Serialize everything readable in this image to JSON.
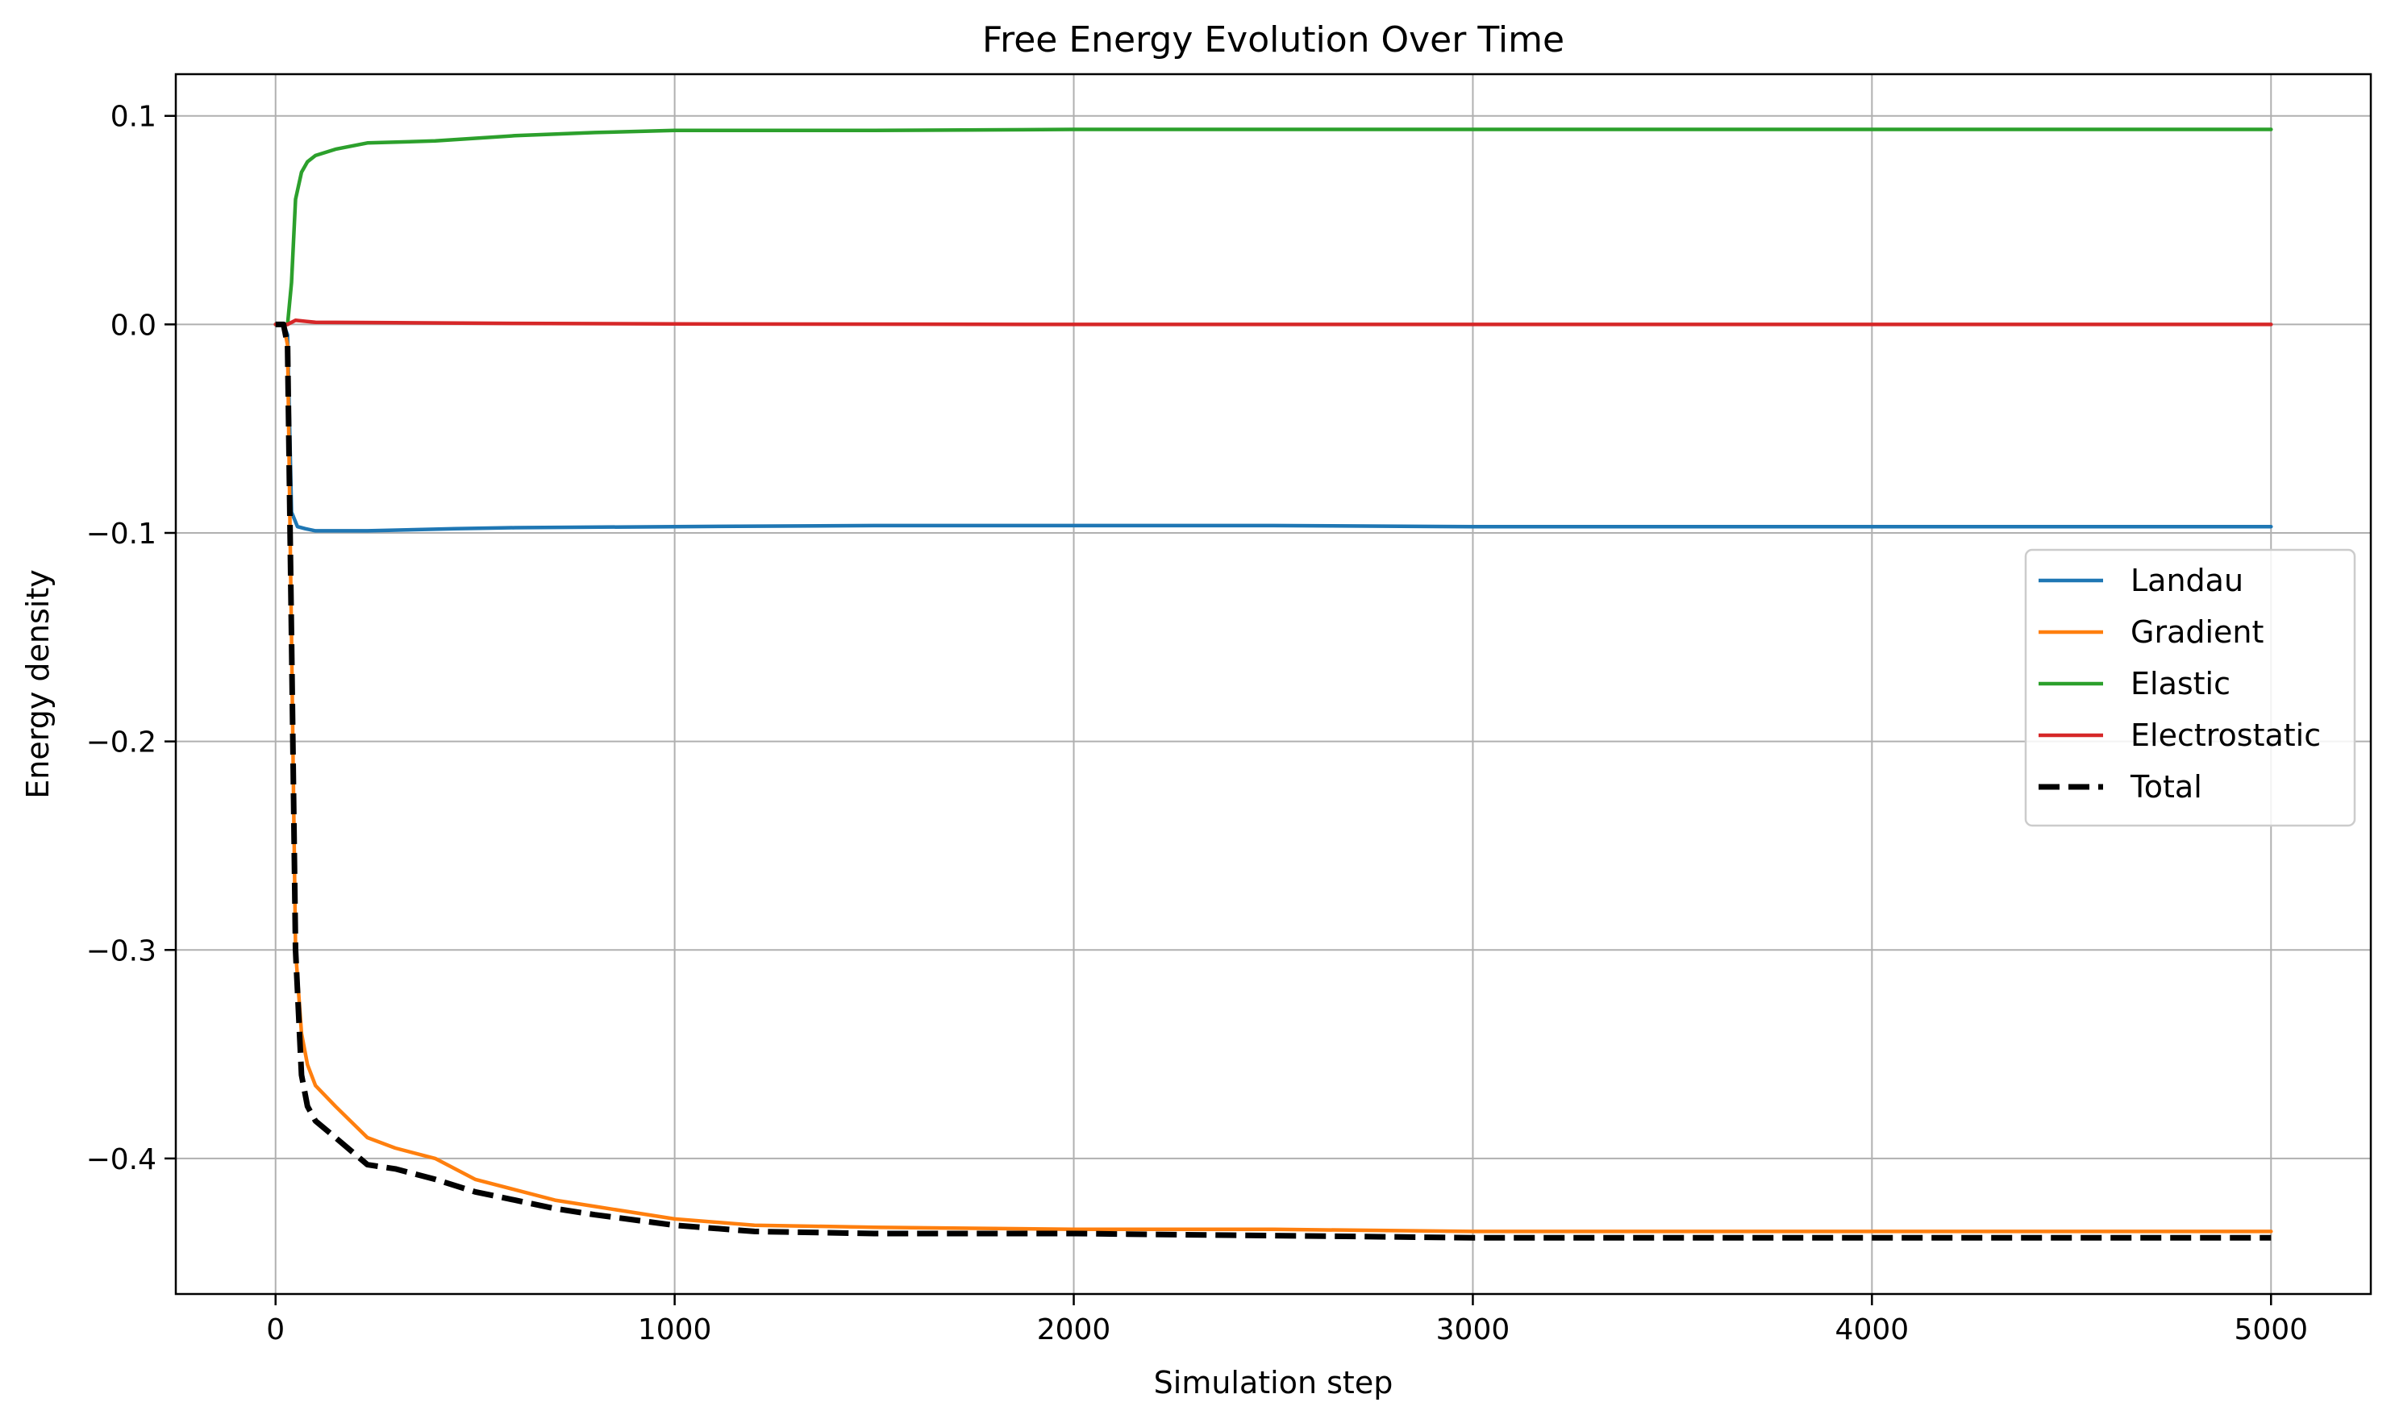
{
  "chart_data": {
    "type": "line",
    "title": "Free Energy Evolution Over Time",
    "xlabel": "Simulation step",
    "ylabel": "Energy density",
    "xlim": [
      -250,
      5250
    ],
    "ylim": [
      -0.465,
      0.12
    ],
    "xticks": [
      0,
      1000,
      2000,
      3000,
      4000,
      5000
    ],
    "yticks": [
      -0.4,
      -0.3,
      -0.2,
      -0.1,
      0.0,
      0.1
    ],
    "ytick_labels": [
      "−0.4",
      "−0.3",
      "−0.2",
      "−0.1",
      "0.0",
      "0.1"
    ],
    "grid": true,
    "legend_position": "center-right",
    "series": [
      {
        "name": "Landau",
        "color": "#1f77b4",
        "style": "solid",
        "points": [
          [
            0,
            0
          ],
          [
            20,
            0
          ],
          [
            30,
            -0.005
          ],
          [
            40,
            -0.09
          ],
          [
            55,
            -0.097
          ],
          [
            75,
            -0.098
          ],
          [
            100,
            -0.099
          ],
          [
            230,
            -0.099
          ],
          [
            450,
            -0.098
          ],
          [
            600,
            -0.0975
          ],
          [
            1000,
            -0.097
          ],
          [
            1500,
            -0.0965
          ],
          [
            2000,
            -0.0965
          ],
          [
            2500,
            -0.0965
          ],
          [
            3000,
            -0.097
          ],
          [
            4000,
            -0.097
          ],
          [
            5000,
            -0.097
          ]
        ]
      },
      {
        "name": "Gradient",
        "color": "#ff7f0e",
        "style": "solid",
        "points": [
          [
            0,
            0
          ],
          [
            20,
            0
          ],
          [
            30,
            -0.01
          ],
          [
            40,
            -0.15
          ],
          [
            50,
            -0.3
          ],
          [
            65,
            -0.34
          ],
          [
            80,
            -0.355
          ],
          [
            100,
            -0.365
          ],
          [
            150,
            -0.375
          ],
          [
            230,
            -0.39
          ],
          [
            300,
            -0.395
          ],
          [
            400,
            -0.4
          ],
          [
            500,
            -0.41
          ],
          [
            600,
            -0.415
          ],
          [
            700,
            -0.42
          ],
          [
            800,
            -0.423
          ],
          [
            1000,
            -0.429
          ],
          [
            1200,
            -0.432
          ],
          [
            1500,
            -0.433
          ],
          [
            2000,
            -0.434
          ],
          [
            2500,
            -0.434
          ],
          [
            3000,
            -0.435
          ],
          [
            4000,
            -0.435
          ],
          [
            5000,
            -0.435
          ]
        ]
      },
      {
        "name": "Elastic",
        "color": "#2ca02c",
        "style": "solid",
        "points": [
          [
            0,
            0
          ],
          [
            30,
            0
          ],
          [
            40,
            0.02
          ],
          [
            50,
            0.06
          ],
          [
            65,
            0.073
          ],
          [
            80,
            0.078
          ],
          [
            100,
            0.081
          ],
          [
            150,
            0.084
          ],
          [
            230,
            0.087
          ],
          [
            400,
            0.088
          ],
          [
            600,
            0.0905
          ],
          [
            800,
            0.092
          ],
          [
            1000,
            0.093
          ],
          [
            1500,
            0.093
          ],
          [
            2000,
            0.0935
          ],
          [
            3000,
            0.0935
          ],
          [
            4000,
            0.0935
          ],
          [
            5000,
            0.0935
          ]
        ]
      },
      {
        "name": "Electrostatic",
        "color": "#d62728",
        "style": "solid",
        "points": [
          [
            0,
            0
          ],
          [
            30,
            0
          ],
          [
            50,
            0.002
          ],
          [
            100,
            0.001
          ],
          [
            300,
            0.0008
          ],
          [
            600,
            0.0005
          ],
          [
            1000,
            0.0002
          ],
          [
            2000,
            0
          ],
          [
            3000,
            0
          ],
          [
            4000,
            0
          ],
          [
            5000,
            0
          ]
        ]
      },
      {
        "name": "Total",
        "color": "#000000",
        "style": "dashed",
        "points": [
          [
            0,
            0
          ],
          [
            20,
            0
          ],
          [
            30,
            -0.01
          ],
          [
            40,
            -0.15
          ],
          [
            50,
            -0.3
          ],
          [
            65,
            -0.36
          ],
          [
            80,
            -0.375
          ],
          [
            100,
            -0.382
          ],
          [
            150,
            -0.39
          ],
          [
            230,
            -0.403
          ],
          [
            300,
            -0.405
          ],
          [
            400,
            -0.41
          ],
          [
            500,
            -0.416
          ],
          [
            600,
            -0.42
          ],
          [
            700,
            -0.424
          ],
          [
            800,
            -0.427
          ],
          [
            1000,
            -0.432
          ],
          [
            1200,
            -0.435
          ],
          [
            1500,
            -0.436
          ],
          [
            2000,
            -0.436
          ],
          [
            2500,
            -0.437
          ],
          [
            3000,
            -0.438
          ],
          [
            4000,
            -0.438
          ],
          [
            5000,
            -0.438
          ]
        ]
      }
    ]
  }
}
